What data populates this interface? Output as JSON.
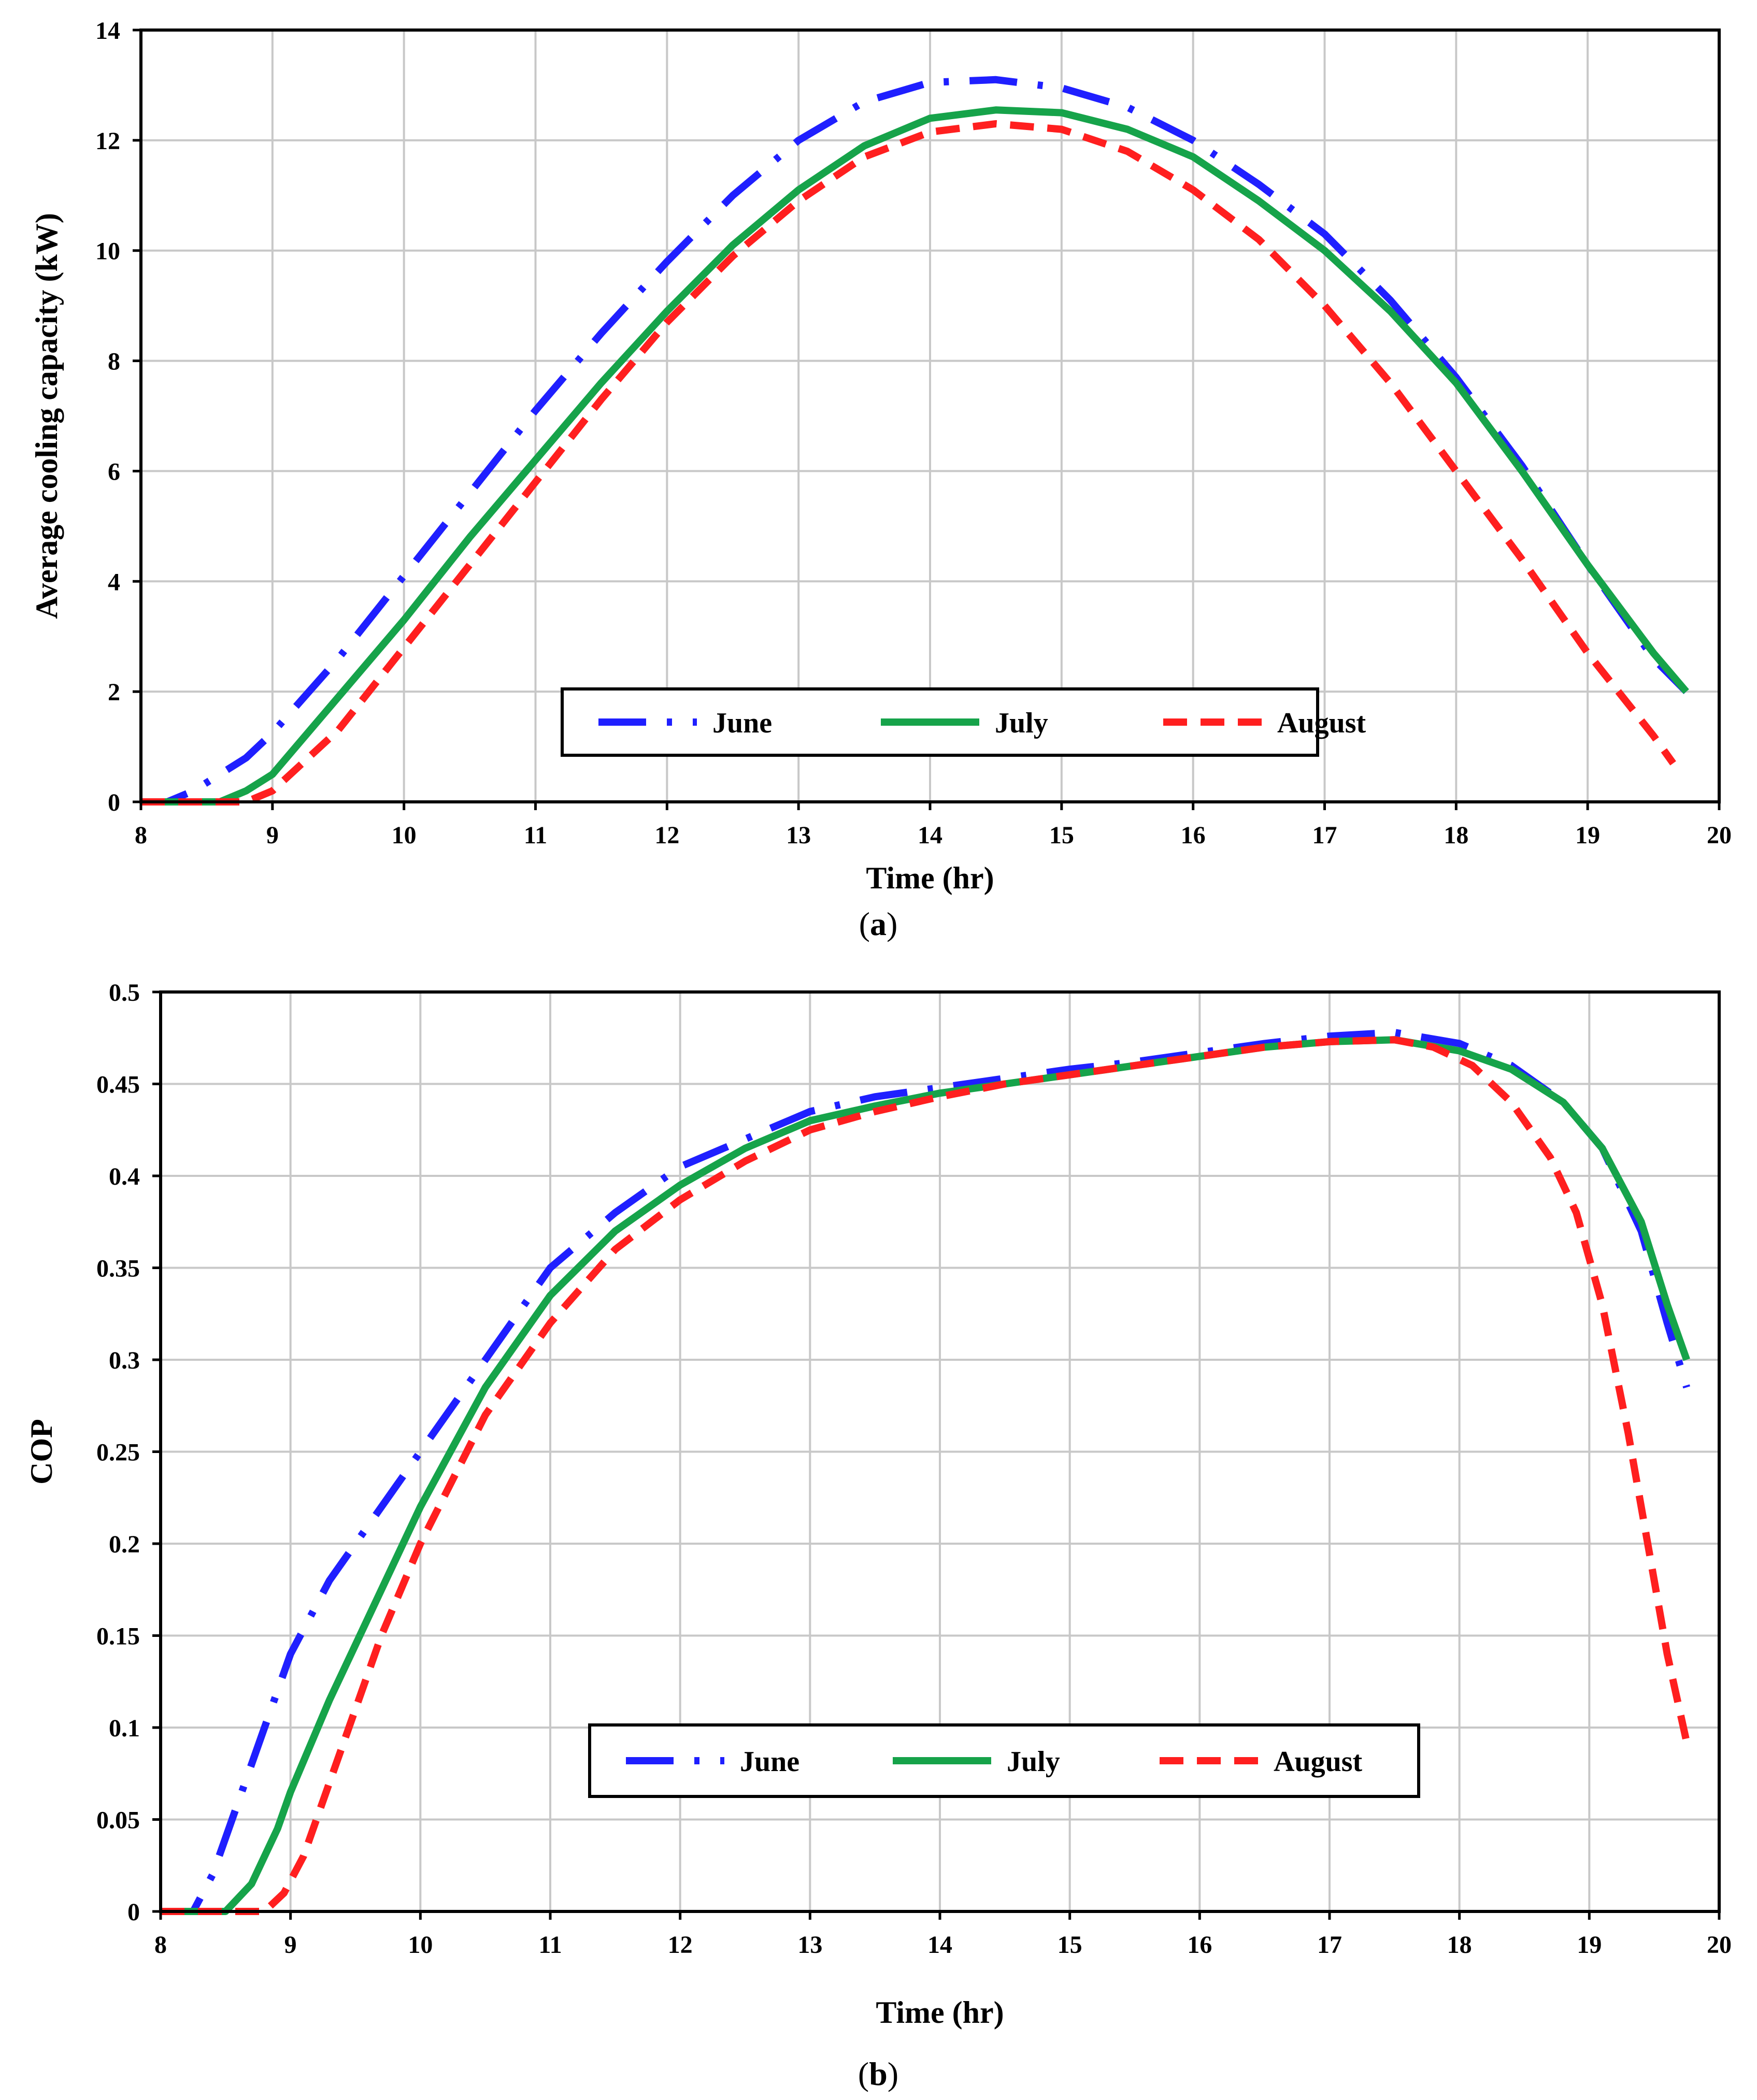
{
  "chart_data": [
    {
      "panel": "a",
      "type": "line",
      "xlabel": "Time (hr)",
      "ylabel": "Average cooling capacity (kW)",
      "xlim": [
        8,
        20
      ],
      "ylim": [
        0,
        14
      ],
      "xticks": [
        "8",
        "9",
        "10",
        "11",
        "12",
        "13",
        "14",
        "15",
        "16",
        "17",
        "18",
        "19",
        "20"
      ],
      "yticks": [
        "0",
        "2",
        "4",
        "6",
        "8",
        "10",
        "12",
        "14"
      ],
      "grid": true,
      "legend": "bottom-right",
      "caption_letter": "a",
      "series": [
        {
          "name": "June",
          "color": "#1f1fff",
          "dash": "dashdot",
          "x": [
            8.0,
            8.2,
            8.4,
            8.6,
            8.8,
            9.0,
            9.5,
            10.0,
            10.5,
            11.0,
            11.5,
            12.0,
            12.5,
            13.0,
            13.5,
            14.0,
            14.5,
            15.0,
            15.5,
            16.0,
            16.5,
            17.0,
            17.5,
            18.0,
            18.5,
            19.0,
            19.5,
            19.75
          ],
          "y": [
            0,
            0,
            0.2,
            0.5,
            0.8,
            1.25,
            2.6,
            4.1,
            5.6,
            7.1,
            8.5,
            9.8,
            11.0,
            12.0,
            12.7,
            13.05,
            13.1,
            12.95,
            12.6,
            12.0,
            11.2,
            10.3,
            9.1,
            7.7,
            6.1,
            4.3,
            2.6,
            2.0
          ]
        },
        {
          "name": "July",
          "color": "#16a34a",
          "dash": "solid",
          "x": [
            8.0,
            8.3,
            8.6,
            8.8,
            9.0,
            9.5,
            10.0,
            10.5,
            11.0,
            11.5,
            12.0,
            12.5,
            13.0,
            13.5,
            14.0,
            14.5,
            15.0,
            15.5,
            16.0,
            16.5,
            17.0,
            17.5,
            18.0,
            18.5,
            19.0,
            19.5,
            19.75
          ],
          "y": [
            0,
            0,
            0,
            0.2,
            0.5,
            1.9,
            3.3,
            4.8,
            6.2,
            7.6,
            8.9,
            10.1,
            11.1,
            11.9,
            12.4,
            12.55,
            12.5,
            12.2,
            11.7,
            10.9,
            10.0,
            8.9,
            7.6,
            6.0,
            4.3,
            2.7,
            2.0
          ]
        },
        {
          "name": "August",
          "color": "#ff1f1f",
          "dash": "dashed",
          "x": [
            8.0,
            8.5,
            8.8,
            9.0,
            9.5,
            10.0,
            10.5,
            11.0,
            11.5,
            12.0,
            12.5,
            13.0,
            13.5,
            14.0,
            14.5,
            15.0,
            15.5,
            16.0,
            16.5,
            17.0,
            17.5,
            18.0,
            18.5,
            19.0,
            19.5,
            19.65
          ],
          "y": [
            0,
            0,
            0,
            0.2,
            1.3,
            2.8,
            4.3,
            5.8,
            7.3,
            8.7,
            9.9,
            10.9,
            11.7,
            12.15,
            12.3,
            12.2,
            11.8,
            11.1,
            10.2,
            9.0,
            7.6,
            6.0,
            4.4,
            2.7,
            1.2,
            0.7
          ]
        }
      ],
      "legend_entries": [
        "June",
        "July",
        "August"
      ]
    },
    {
      "panel": "b",
      "type": "line",
      "xlabel": "Time (hr)",
      "ylabel": "COP",
      "xlim": [
        8,
        20
      ],
      "ylim": [
        0,
        0.5
      ],
      "xticks": [
        "8",
        "9",
        "10",
        "11",
        "12",
        "13",
        "14",
        "15",
        "16",
        "17",
        "18",
        "19",
        "20"
      ],
      "yticks": [
        "0",
        "0.05",
        "0.1",
        "0.15",
        "0.2",
        "0.25",
        "0.3",
        "0.35",
        "0.4",
        "0.45",
        "0.5"
      ],
      "grid": true,
      "legend": "bottom-center",
      "caption_letter": "b",
      "series": [
        {
          "name": "June",
          "color": "#1f1fff",
          "dash": "dashdot",
          "x": [
            8.0,
            8.25,
            8.4,
            8.6,
            8.8,
            9.0,
            9.3,
            9.6,
            10.0,
            10.5,
            11.0,
            11.5,
            12.0,
            12.5,
            13.0,
            13.5,
            14.0,
            14.5,
            15.0,
            15.5,
            16.0,
            16.5,
            17.0,
            17.5,
            18.0,
            18.4,
            18.8,
            19.1,
            19.4,
            19.6,
            19.75
          ],
          "y": [
            0,
            0,
            0.02,
            0.06,
            0.1,
            0.14,
            0.18,
            0.21,
            0.25,
            0.3,
            0.35,
            0.38,
            0.405,
            0.42,
            0.435,
            0.443,
            0.448,
            0.453,
            0.458,
            0.462,
            0.467,
            0.472,
            0.476,
            0.478,
            0.472,
            0.46,
            0.44,
            0.415,
            0.37,
            0.32,
            0.285
          ]
        },
        {
          "name": "July",
          "color": "#16a34a",
          "dash": "solid",
          "x": [
            8.0,
            8.5,
            8.7,
            8.9,
            9.0,
            9.3,
            9.6,
            10.0,
            10.5,
            11.0,
            11.5,
            12.0,
            12.5,
            13.0,
            13.5,
            14.0,
            14.5,
            15.0,
            15.5,
            16.0,
            16.5,
            17.0,
            17.5,
            18.0,
            18.4,
            18.8,
            19.1,
            19.4,
            19.6,
            19.75
          ],
          "y": [
            0,
            0,
            0.015,
            0.045,
            0.065,
            0.115,
            0.16,
            0.22,
            0.285,
            0.335,
            0.37,
            0.395,
            0.415,
            0.43,
            0.438,
            0.445,
            0.45,
            0.455,
            0.46,
            0.465,
            0.47,
            0.473,
            0.474,
            0.468,
            0.458,
            0.44,
            0.415,
            0.375,
            0.33,
            0.3
          ]
        },
        {
          "name": "August",
          "color": "#ff1f1f",
          "dash": "dashed",
          "x": [
            8.0,
            8.8,
            8.95,
            9.1,
            9.4,
            9.7,
            10.0,
            10.5,
            11.0,
            11.5,
            12.0,
            12.5,
            13.0,
            13.5,
            14.0,
            14.5,
            15.0,
            15.5,
            16.0,
            16.5,
            17.0,
            17.5,
            17.8,
            18.1,
            18.4,
            18.7,
            18.9,
            19.1,
            19.3,
            19.45,
            19.6,
            19.75
          ],
          "y": [
            0,
            0,
            0.01,
            0.03,
            0.09,
            0.15,
            0.2,
            0.27,
            0.32,
            0.36,
            0.387,
            0.408,
            0.425,
            0.435,
            0.443,
            0.45,
            0.455,
            0.46,
            0.465,
            0.47,
            0.473,
            0.474,
            0.47,
            0.46,
            0.44,
            0.41,
            0.38,
            0.33,
            0.26,
            0.2,
            0.14,
            0.092
          ]
        }
      ],
      "legend_entries": [
        "June",
        "July",
        "August"
      ]
    }
  ]
}
